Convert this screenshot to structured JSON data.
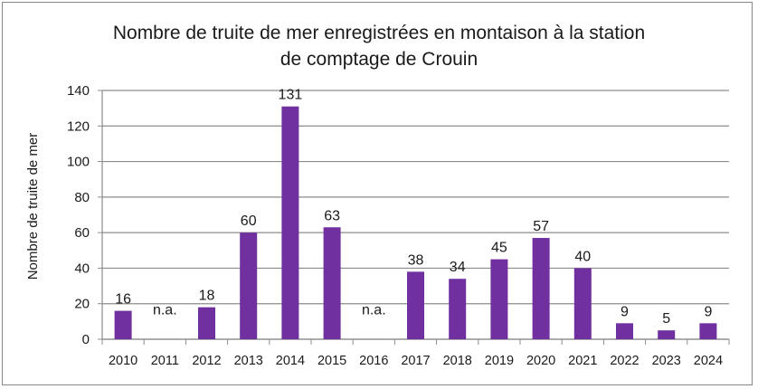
{
  "chart_data": {
    "type": "bar",
    "title_line1": "Nombre de truite de mer enregistrées en montaison à la station",
    "title_line2": "de comptage de Crouin",
    "ylabel": "Nombre de truite de mer",
    "xlabel": "",
    "ylim": [
      0,
      140
    ],
    "yticks": [
      0,
      20,
      40,
      60,
      80,
      100,
      120,
      140
    ],
    "grid": true,
    "legend": "none",
    "bar_color": "#7030A0",
    "categories": [
      "2010",
      "2011",
      "2012",
      "2013",
      "2014",
      "2015",
      "2016",
      "2017",
      "2018",
      "2019",
      "2020",
      "2021",
      "2022",
      "2023",
      "2024"
    ],
    "values": [
      16,
      null,
      18,
      60,
      131,
      63,
      null,
      38,
      34,
      45,
      57,
      40,
      9,
      5,
      9
    ],
    "data_labels": [
      "16",
      "n.a.",
      "18",
      "60",
      "131",
      "63",
      "n.a.",
      "38",
      "34",
      "45",
      "57",
      "40",
      "9",
      "5",
      "9"
    ]
  }
}
